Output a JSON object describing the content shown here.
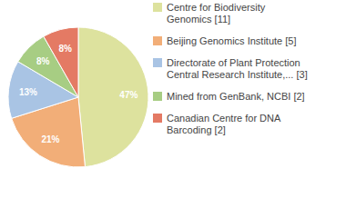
{
  "chart_data": {
    "type": "pie",
    "categories": [
      "Centre for Biodiversity Genomics [11]",
      "Beijing Genomics Institute [5]",
      "Directorate of Plant Protection Central Research Institute,... [3]",
      "Mined from GenBank, NCBI [2]",
      "Canadian Centre for DNA Barcoding [2]"
    ],
    "values": [
      47,
      21,
      13,
      8,
      8
    ],
    "value_labels": [
      "47%",
      "21%",
      "13%",
      "8%",
      "8%"
    ],
    "data_labels": true,
    "colors": [
      "#dde29e",
      "#f2ae78",
      "#a9c4e4",
      "#a7cd83",
      "#e47a64"
    ],
    "legend": "right"
  }
}
